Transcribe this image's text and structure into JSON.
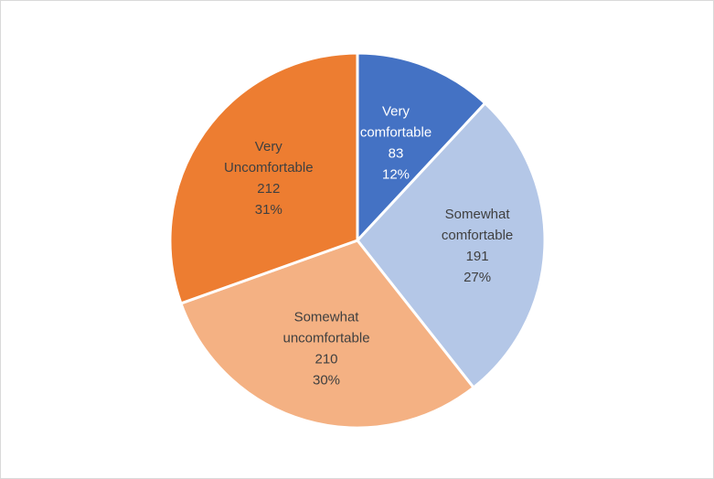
{
  "chart_data": {
    "type": "pie",
    "title": "",
    "start_angle_deg": 0,
    "direction": "clockwise",
    "slices": [
      {
        "category": "Very comfortable",
        "label_lines": [
          "Very",
          "comfortable"
        ],
        "value": 83,
        "percent_label": "12%",
        "color": "#4472C4",
        "text_color": "#ffffff"
      },
      {
        "category": "Somewhat comfortable",
        "label_lines": [
          "Somewhat",
          "comfortable"
        ],
        "value": 191,
        "percent_label": "27%",
        "color": "#B4C7E7",
        "text_color": "#404040"
      },
      {
        "category": "Somewhat uncomfortable",
        "label_lines": [
          "Somewhat",
          "uncomfortable"
        ],
        "value": 210,
        "percent_label": "30%",
        "color": "#F4B183",
        "text_color": "#404040"
      },
      {
        "category": "Very Uncomfortable",
        "label_lines": [
          "Very",
          "Uncomfortable"
        ],
        "value": 212,
        "percent_label": "31%",
        "color": "#ED7D31",
        "text_color": "#404040"
      }
    ],
    "legend": "none",
    "data_labels": "category, value, percent"
  }
}
